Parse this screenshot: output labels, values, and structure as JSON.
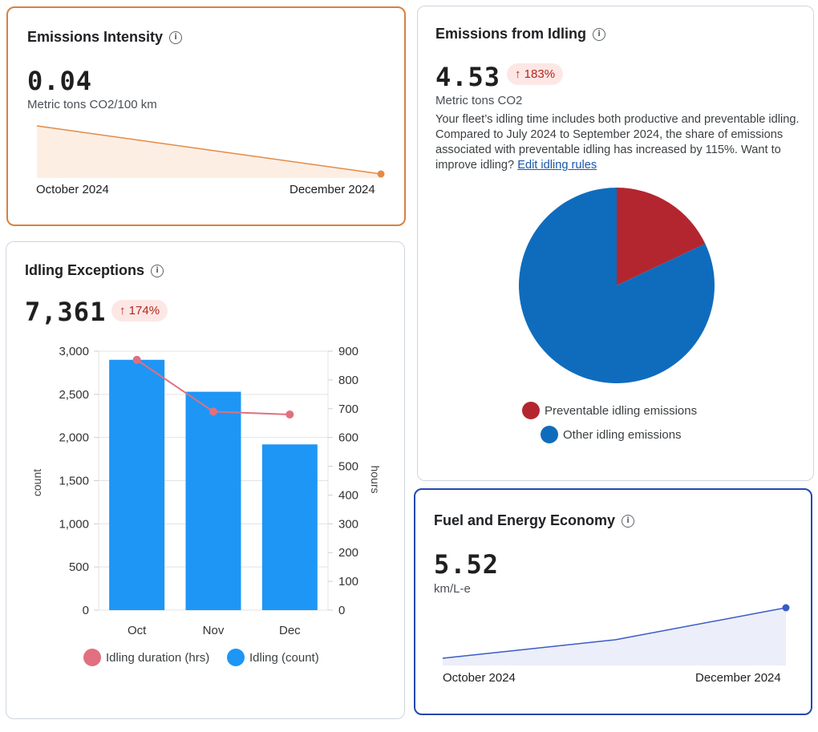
{
  "emissions_intensity": {
    "title": "Emissions Intensity",
    "value": "0.04",
    "unit": "Metric tons CO2/100 km",
    "start_label": "October 2024",
    "end_label": "December 2024",
    "trend": [
      0.05,
      0.04
    ],
    "color": "#e38b45"
  },
  "idling_emissions": {
    "title": "Emissions from Idling",
    "value": "4.53",
    "change": "↑ 183%",
    "unit": "Metric tons CO2",
    "description": "Your fleet’s idling time includes both productive and preventable idling. Compared to July 2024 to September 2024, the share of emissions associated with preventable idling has increased by 115%. Want to improve idling?",
    "link_text": "Edit idling rules",
    "legend": [
      {
        "label": "Preventable idling emissions",
        "color": "#b3262f"
      },
      {
        "label": "Other idling emissions",
        "color": "#0f6cbd"
      }
    ]
  },
  "idling_exceptions": {
    "title": "Idling Exceptions",
    "value": "7,361",
    "change": "↑ 174%",
    "left_axis_label": "count",
    "right_axis_label": "hours",
    "legend": [
      {
        "label": "Idling duration (hrs)",
        "color": "#e07080"
      },
      {
        "label": "Idling (count)",
        "color": "#1e96f5"
      }
    ]
  },
  "fuel_economy": {
    "title": "Fuel and Energy Economy",
    "value": "5.52",
    "unit": "km/L-e",
    "start_label": "October 2024",
    "end_label": "December 2024",
    "trend": [
      5.0,
      5.15,
      5.52
    ],
    "color": "#3a5bc7"
  },
  "chart_data": [
    {
      "type": "bar",
      "title": "Idling Exceptions",
      "categories": [
        "Oct",
        "Nov",
        "Dec"
      ],
      "series": [
        {
          "name": "Idling (count)",
          "values": [
            2900,
            2530,
            1920
          ],
          "axis": "left",
          "type": "bar"
        },
        {
          "name": "Idling duration (hrs)",
          "values": [
            870,
            690,
            680
          ],
          "axis": "right",
          "type": "line"
        }
      ],
      "ylabel": "count",
      "y2label": "hours",
      "ylim": [
        0,
        3000
      ],
      "y2lim": [
        0,
        900
      ],
      "yticks": [
        "0",
        "500",
        "1,000",
        "1,500",
        "2,000",
        "2,500",
        "3,000"
      ],
      "y2ticks": [
        "0",
        "100",
        "200",
        "300",
        "400",
        "500",
        "600",
        "700",
        "800",
        "900"
      ]
    },
    {
      "type": "pie",
      "title": "Emissions from Idling",
      "labels": [
        "Preventable idling emissions",
        "Other idling emissions"
      ],
      "values": [
        18,
        82
      ]
    }
  ]
}
